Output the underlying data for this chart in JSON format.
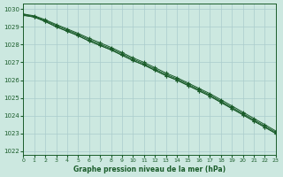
{
  "title": "Graphe pression niveau de la mer (hPa)",
  "background_color": "#cce8e0",
  "grid_color": "#aacccc",
  "line_color": "#1a5c2a",
  "xlim": [
    0,
    23
  ],
  "ylim": [
    1021.8,
    1030.3
  ],
  "yticks": [
    1022,
    1023,
    1024,
    1025,
    1026,
    1027,
    1028,
    1029,
    1030
  ],
  "xticks": [
    0,
    1,
    2,
    3,
    4,
    5,
    6,
    7,
    8,
    9,
    10,
    11,
    12,
    13,
    14,
    15,
    16,
    17,
    18,
    19,
    20,
    21,
    22,
    23
  ],
  "hours": [
    0,
    1,
    2,
    3,
    4,
    5,
    6,
    7,
    8,
    9,
    10,
    11,
    12,
    13,
    14,
    15,
    16,
    17,
    18,
    19,
    20,
    21,
    22,
    23
  ],
  "line1": [
    1029.65,
    1029.55,
    1029.3,
    1029.0,
    1028.75,
    1028.5,
    1028.2,
    1027.95,
    1027.7,
    1027.4,
    1027.1,
    1026.85,
    1026.55,
    1026.25,
    1026.0,
    1025.7,
    1025.4,
    1025.1,
    1024.75,
    1024.4,
    1024.05,
    1023.7,
    1023.35,
    1023.0
  ],
  "line2": [
    1029.65,
    1029.55,
    1029.3,
    1029.0,
    1028.75,
    1028.5,
    1028.2,
    1027.95,
    1027.7,
    1027.4,
    1027.1,
    1026.85,
    1026.55,
    1026.25,
    1026.0,
    1025.7,
    1025.4,
    1025.1,
    1024.75,
    1024.4,
    1024.05,
    1023.7,
    1023.35,
    1023.0
  ],
  "line3": [
    1029.7,
    1029.58,
    1029.35,
    1029.08,
    1028.82,
    1028.57,
    1028.28,
    1028.02,
    1027.77,
    1027.48,
    1027.18,
    1026.92,
    1026.62,
    1026.32,
    1026.07,
    1025.77,
    1025.47,
    1025.17,
    1024.82,
    1024.47,
    1024.12,
    1023.77,
    1023.42,
    1023.07
  ],
  "line4": [
    1029.72,
    1029.62,
    1029.4,
    1029.13,
    1028.88,
    1028.63,
    1028.35,
    1028.1,
    1027.84,
    1027.55,
    1027.25,
    1027.0,
    1026.7,
    1026.4,
    1026.14,
    1025.84,
    1025.54,
    1025.24,
    1024.9,
    1024.55,
    1024.2,
    1023.85,
    1023.5,
    1023.14
  ]
}
